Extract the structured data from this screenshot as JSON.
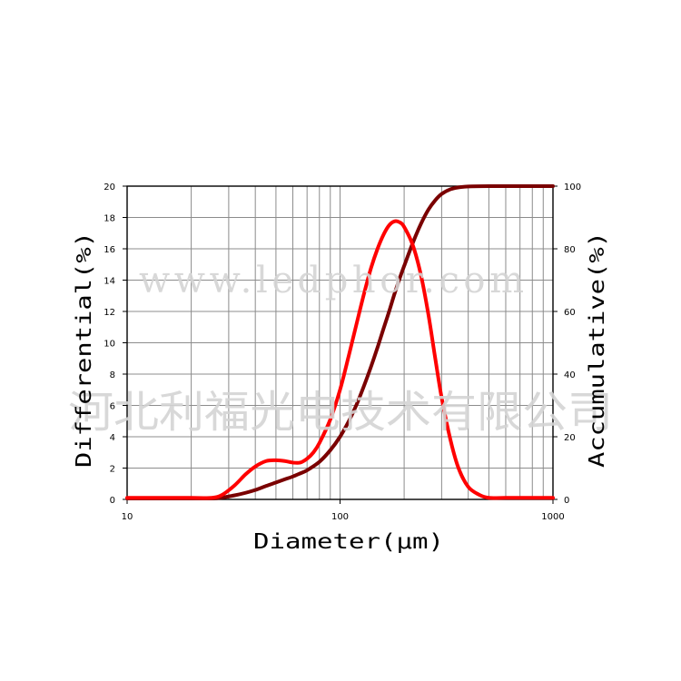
{
  "chart_data": {
    "type": "line",
    "xlabel": "Diameter(μm)",
    "ylabel_left": "Differential(%)",
    "ylabel_right": "Accumulative(%)",
    "xscale": "log",
    "xlim": [
      10,
      1000
    ],
    "ylim_left": [
      0,
      20
    ],
    "ylim_right": [
      0,
      100
    ],
    "x_ticks": [
      "10",
      "100",
      "1000"
    ],
    "y_ticks_left": [
      "0",
      "2",
      "4",
      "6",
      "8",
      "10",
      "12",
      "14",
      "16",
      "18",
      "20"
    ],
    "y_ticks_right": [
      "0",
      "20",
      "40",
      "60",
      "80",
      "100"
    ],
    "grid": true,
    "series": [
      {
        "axis": "left",
        "color": "#ff0000",
        "points": [
          [
            10,
            0.1
          ],
          [
            20,
            0.1
          ],
          [
            25,
            0.1
          ],
          [
            28,
            0.3
          ],
          [
            32,
            0.9
          ],
          [
            36,
            1.6
          ],
          [
            40,
            2.1
          ],
          [
            45,
            2.45
          ],
          [
            50,
            2.5
          ],
          [
            55,
            2.45
          ],
          [
            60,
            2.35
          ],
          [
            65,
            2.35
          ],
          [
            70,
            2.6
          ],
          [
            75,
            3.0
          ],
          [
            80,
            3.6
          ],
          [
            90,
            5.1
          ],
          [
            100,
            7.0
          ],
          [
            110,
            9.2
          ],
          [
            120,
            11.3
          ],
          [
            130,
            13.2
          ],
          [
            140,
            14.8
          ],
          [
            150,
            16.0
          ],
          [
            160,
            16.9
          ],
          [
            170,
            17.5
          ],
          [
            180,
            17.75
          ],
          [
            190,
            17.7
          ],
          [
            200,
            17.4
          ],
          [
            220,
            16.2
          ],
          [
            240,
            14.3
          ],
          [
            260,
            11.8
          ],
          [
            280,
            9.0
          ],
          [
            300,
            6.5
          ],
          [
            330,
            3.8
          ],
          [
            360,
            2.0
          ],
          [
            400,
            0.8
          ],
          [
            450,
            0.3
          ],
          [
            500,
            0.1
          ],
          [
            600,
            0.1
          ],
          [
            1000,
            0.1
          ]
        ]
      },
      {
        "axis": "right",
        "color": "#7a0000",
        "points": [
          [
            10,
            0.3
          ],
          [
            20,
            0.3
          ],
          [
            25,
            0.3
          ],
          [
            28,
            0.6
          ],
          [
            32,
            1.3
          ],
          [
            36,
            2.1
          ],
          [
            40,
            3.0
          ],
          [
            45,
            4.3
          ],
          [
            50,
            5.4
          ],
          [
            55,
            6.4
          ],
          [
            60,
            7.3
          ],
          [
            65,
            8.3
          ],
          [
            70,
            9.3
          ],
          [
            80,
            12.0
          ],
          [
            90,
            15.7
          ],
          [
            100,
            20.0
          ],
          [
            110,
            25.0
          ],
          [
            120,
            30.5
          ],
          [
            130,
            36.5
          ],
          [
            140,
            42.5
          ],
          [
            150,
            48.5
          ],
          [
            160,
            54.5
          ],
          [
            170,
            60.0
          ],
          [
            180,
            65.5
          ],
          [
            190,
            70.3
          ],
          [
            200,
            74.5
          ],
          [
            220,
            82.0
          ],
          [
            240,
            88.0
          ],
          [
            260,
            92.5
          ],
          [
            280,
            95.5
          ],
          [
            300,
            97.5
          ],
          [
            330,
            99.0
          ],
          [
            360,
            99.6
          ],
          [
            400,
            99.9
          ],
          [
            500,
            100
          ],
          [
            1000,
            100
          ]
        ]
      }
    ]
  },
  "watermark": {
    "line1": "www.ledphor.com",
    "line2": "河北利福光电技术有限公司"
  }
}
